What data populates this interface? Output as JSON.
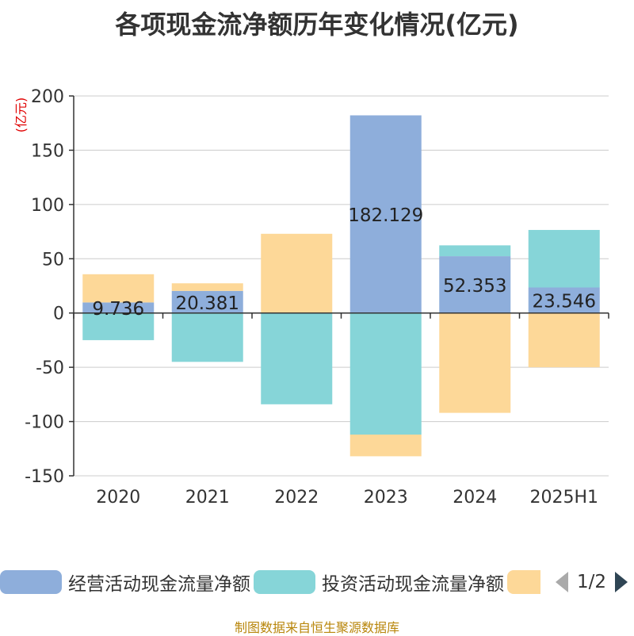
{
  "title": "各项现金流净额历年变化情况(亿元)",
  "source": "制图数据来自恒生聚源数据库",
  "legend": {
    "page_indicator": "1/2"
  },
  "colors": {
    "operating": "#8eaedb",
    "investing": "#86d5d8",
    "financing": "#fdd898"
  },
  "chart_data": {
    "type": "bar",
    "stacked": true,
    "categories": [
      "2020",
      "2021",
      "2022",
      "2023",
      "2024",
      "2025H1"
    ],
    "ylabel": "(亿元)",
    "ylim": [
      -150,
      200
    ],
    "yticks": [
      200,
      150,
      100,
      50,
      0,
      -50,
      -100,
      -150
    ],
    "grid": true,
    "legend_position": "bottom",
    "series": [
      {
        "name": "经营活动现金流量净额",
        "color": "#8eaedb",
        "values": [
          9.736,
          20.381,
          -0.1,
          182.129,
          52.353,
          23.546
        ],
        "labels": [
          "9.736",
          "20.381",
          "",
          "182.129",
          "52.353",
          "23.546"
        ]
      },
      {
        "name": "投资活动现金流量净额",
        "color": "#86d5d8",
        "values": [
          -25,
          -45,
          -84,
          -112,
          10,
          53
        ]
      },
      {
        "name": "",
        "color": "#fdd898",
        "values": [
          26,
          7,
          73,
          -20,
          -92,
          -50
        ]
      }
    ]
  }
}
